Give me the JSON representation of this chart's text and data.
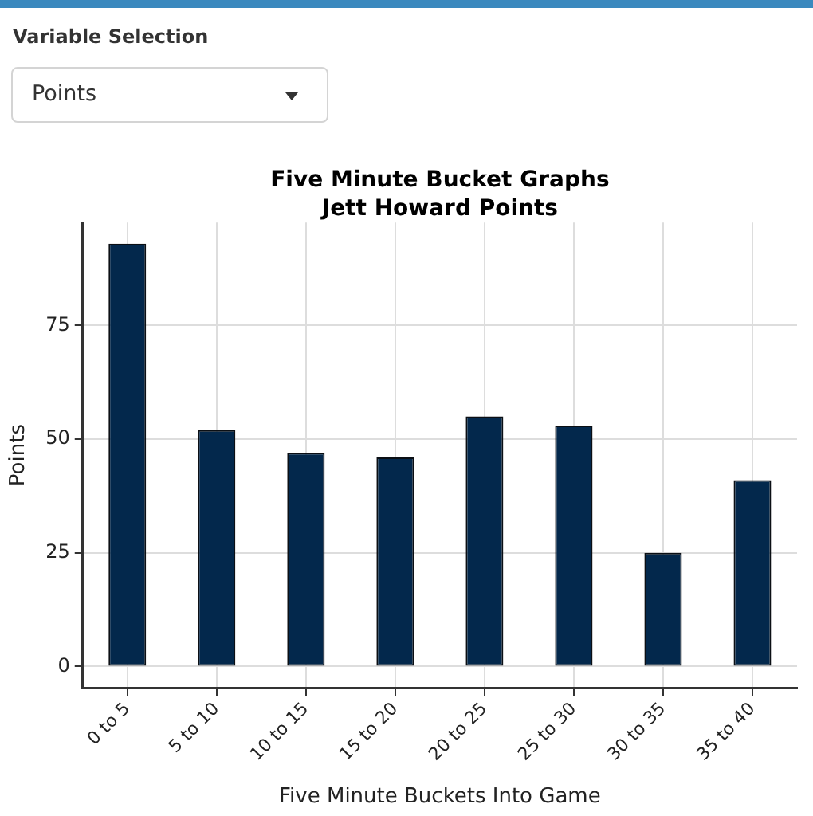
{
  "chart_data": {
    "type": "bar",
    "title": "Five Minute Bucket Graphs",
    "subtitle": "Jett Howard Points",
    "xlabel": "Five Minute Buckets Into Game",
    "ylabel": "Points",
    "categories": [
      "0 to 5",
      "5 to 10",
      "10 to 15",
      "15 to 20",
      "20 to 25",
      "25 to 30",
      "30 to 35",
      "35 to 40"
    ],
    "values": [
      93,
      52,
      47,
      46,
      55,
      53,
      25,
      41
    ],
    "color": "#03284c",
    "ylim": [
      -4.65,
      97.65
    ],
    "yticks": [
      0,
      25,
      50,
      75
    ],
    "grid": true,
    "annotations": [
      "Variable Selection",
      "Points"
    ]
  }
}
